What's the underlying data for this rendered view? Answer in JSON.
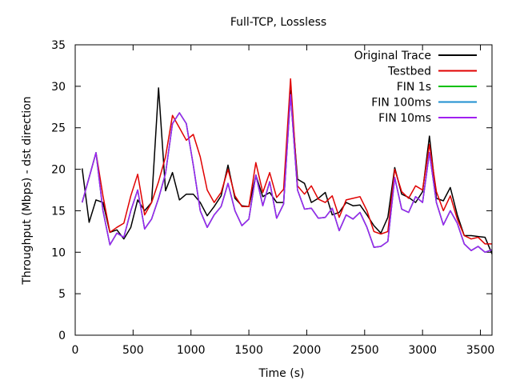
{
  "chart_data": {
    "type": "line",
    "title": "Full-TCP, Lossless",
    "xlabel": "Time (s)",
    "ylabel": "Throughput (Mbps) - dst direction",
    "xlim": [
      0,
      3600
    ],
    "ylim": [
      0,
      35
    ],
    "xticks": [
      0,
      500,
      1000,
      1500,
      2000,
      2500,
      3000,
      3500
    ],
    "yticks": [
      0,
      5,
      10,
      15,
      20,
      25,
      30,
      35
    ],
    "grid": false,
    "legend_position": "top-right",
    "series": [
      {
        "name": "Original Trace",
        "color": "#000000",
        "x": [
          60,
          120,
          180,
          240,
          300,
          360,
          420,
          480,
          540,
          600,
          660,
          720,
          780,
          840,
          900,
          960,
          1020,
          1080,
          1140,
          1200,
          1260,
          1320,
          1380,
          1440,
          1500,
          1560,
          1620,
          1680,
          1740,
          1800,
          1860,
          1920,
          1980,
          2040,
          2100,
          2160,
          2220,
          2280,
          2340,
          2400,
          2460,
          2520,
          2580,
          2640,
          2700,
          2760,
          2820,
          2880,
          2940,
          3000,
          3060,
          3120,
          3180,
          3240,
          3300,
          3360,
          3420,
          3480,
          3540,
          3600
        ],
        "y": [
          20.1,
          13.6,
          16.3,
          16.0,
          12.4,
          12.7,
          11.6,
          13.0,
          16.3,
          15.0,
          16.0,
          29.8,
          17.4,
          19.6,
          16.3,
          17.0,
          17.0,
          16.0,
          14.4,
          15.5,
          16.8,
          20.5,
          16.5,
          15.6,
          15.5,
          19.3,
          16.7,
          17.2,
          16.0,
          16.0,
          29.5,
          18.8,
          18.3,
          16.0,
          16.5,
          17.2,
          14.5,
          14.8,
          16.0,
          15.6,
          15.7,
          14.5,
          13.2,
          12.3,
          14.2,
          20.2,
          17.0,
          16.6,
          16.0,
          17.3,
          24.0,
          16.5,
          16.2,
          17.8,
          14.5,
          12.0,
          12.0,
          11.9,
          11.8,
          9.8
        ]
      },
      {
        "name": "Testbed",
        "color": "#e00000",
        "x": [
          60,
          120,
          180,
          240,
          300,
          360,
          420,
          480,
          540,
          600,
          660,
          720,
          780,
          840,
          900,
          960,
          1020,
          1080,
          1140,
          1200,
          1260,
          1320,
          1380,
          1440,
          1500,
          1560,
          1620,
          1680,
          1740,
          1800,
          1860,
          1920,
          1980,
          2040,
          2100,
          2160,
          2220,
          2280,
          2340,
          2400,
          2460,
          2520,
          2580,
          2640,
          2700,
          2760,
          2820,
          2880,
          2940,
          3000,
          3060,
          3120,
          3180,
          3240,
          3300,
          3360,
          3420,
          3480,
          3540,
          3600
        ],
        "y": [
          16.0,
          19.0,
          22.0,
          16.8,
          12.4,
          13.0,
          13.5,
          16.8,
          19.4,
          14.5,
          16.0,
          18.5,
          21.5,
          26.5,
          25.0,
          23.5,
          24.2,
          21.5,
          17.5,
          16.0,
          17.2,
          20.0,
          16.8,
          15.5,
          15.5,
          20.8,
          17.2,
          19.6,
          16.6,
          17.6,
          30.9,
          18.0,
          17.0,
          18.0,
          16.4,
          16.0,
          16.8,
          14.2,
          16.3,
          16.5,
          16.7,
          15.0,
          12.5,
          12.2,
          12.5,
          20.0,
          17.3,
          16.5,
          18.0,
          17.5,
          23.0,
          17.3,
          15.0,
          16.8,
          14.0,
          12.0,
          11.6,
          11.8,
          11.0,
          11.0
        ]
      },
      {
        "name": "FIN 1s",
        "color": "#00c000",
        "x": [
          60,
          120,
          180,
          240,
          300,
          360,
          420,
          480,
          540,
          600,
          660,
          720,
          780,
          840,
          900,
          960,
          1020,
          1080,
          1140,
          1200,
          1260,
          1320,
          1380,
          1440,
          1500,
          1560,
          1620,
          1680,
          1740,
          1800,
          1860,
          1920,
          1980,
          2040,
          2100,
          2160,
          2220,
          2280,
          2340,
          2400,
          2460,
          2520,
          2580,
          2640,
          2700,
          2760,
          2820,
          2880,
          2940,
          3000,
          3060,
          3120,
          3180,
          3240,
          3300,
          3360,
          3420,
          3480,
          3540,
          3600
        ],
        "y": [
          16.0,
          19.0,
          22.0,
          15.0,
          10.9,
          12.3,
          11.8,
          15.0,
          17.5,
          12.8,
          14.0,
          16.5,
          19.5,
          25.5,
          26.8,
          25.5,
          20.5,
          15.0,
          13.0,
          14.5,
          15.5,
          18.3,
          15.0,
          13.2,
          14.0,
          19.3,
          15.6,
          18.5,
          14.1,
          15.8,
          29.0,
          17.5,
          15.2,
          15.3,
          14.1,
          14.2,
          15.3,
          12.6,
          14.5,
          14.0,
          14.8,
          13.0,
          10.6,
          10.7,
          11.3,
          19.0,
          15.2,
          14.8,
          16.7,
          16.0,
          22.0,
          16.0,
          13.3,
          15.0,
          13.5,
          11.0,
          10.2,
          10.7,
          10.0,
          10.3
        ]
      },
      {
        "name": "FIN 100ms",
        "color": "#1e8fd0",
        "x": [
          60,
          120,
          180,
          240,
          300,
          360,
          420,
          480,
          540,
          600,
          660,
          720,
          780,
          840,
          900,
          960,
          1020,
          1080,
          1140,
          1200,
          1260,
          1320,
          1380,
          1440,
          1500,
          1560,
          1620,
          1680,
          1740,
          1800,
          1860,
          1920,
          1980,
          2040,
          2100,
          2160,
          2220,
          2280,
          2340,
          2400,
          2460,
          2520,
          2580,
          2640,
          2700,
          2760,
          2820,
          2880,
          2940,
          3000,
          3060,
          3120,
          3180,
          3240,
          3300,
          3360,
          3420,
          3480,
          3540,
          3600
        ],
        "y": [
          16.0,
          19.0,
          22.0,
          15.0,
          10.9,
          12.3,
          11.8,
          15.0,
          17.5,
          12.8,
          14.0,
          16.5,
          19.5,
          25.5,
          26.8,
          25.5,
          20.5,
          15.0,
          13.0,
          14.5,
          15.5,
          18.3,
          15.0,
          13.2,
          14.0,
          19.3,
          15.6,
          18.5,
          14.1,
          15.8,
          29.0,
          17.5,
          15.2,
          15.3,
          14.1,
          14.2,
          15.3,
          12.6,
          14.5,
          14.0,
          14.8,
          13.0,
          10.6,
          10.7,
          11.3,
          19.0,
          15.2,
          14.8,
          16.7,
          16.0,
          22.0,
          16.0,
          13.3,
          15.0,
          13.5,
          11.0,
          10.2,
          10.7,
          10.0,
          10.3
        ]
      },
      {
        "name": "FIN 10ms",
        "color": "#a020f0",
        "x": [
          60,
          120,
          180,
          240,
          300,
          360,
          420,
          480,
          540,
          600,
          660,
          720,
          780,
          840,
          900,
          960,
          1020,
          1080,
          1140,
          1200,
          1260,
          1320,
          1380,
          1440,
          1500,
          1560,
          1620,
          1680,
          1740,
          1800,
          1860,
          1920,
          1980,
          2040,
          2100,
          2160,
          2220,
          2280,
          2340,
          2400,
          2460,
          2520,
          2580,
          2640,
          2700,
          2760,
          2820,
          2880,
          2940,
          3000,
          3060,
          3120,
          3180,
          3240,
          3300,
          3360,
          3420,
          3480,
          3540,
          3600
        ],
        "y": [
          16.0,
          19.0,
          22.0,
          15.0,
          10.9,
          12.3,
          11.8,
          15.0,
          17.5,
          12.8,
          14.0,
          16.5,
          19.5,
          25.5,
          26.8,
          25.5,
          20.5,
          15.0,
          13.0,
          14.5,
          15.5,
          18.3,
          15.0,
          13.2,
          14.0,
          19.3,
          15.6,
          18.5,
          14.1,
          15.8,
          29.0,
          17.5,
          15.2,
          15.3,
          14.1,
          14.2,
          15.3,
          12.6,
          14.5,
          14.0,
          14.8,
          13.0,
          10.6,
          10.7,
          11.3,
          19.0,
          15.2,
          14.8,
          16.7,
          16.0,
          22.0,
          16.0,
          13.3,
          15.0,
          13.5,
          11.0,
          10.2,
          10.7,
          10.0,
          10.3
        ]
      }
    ]
  }
}
